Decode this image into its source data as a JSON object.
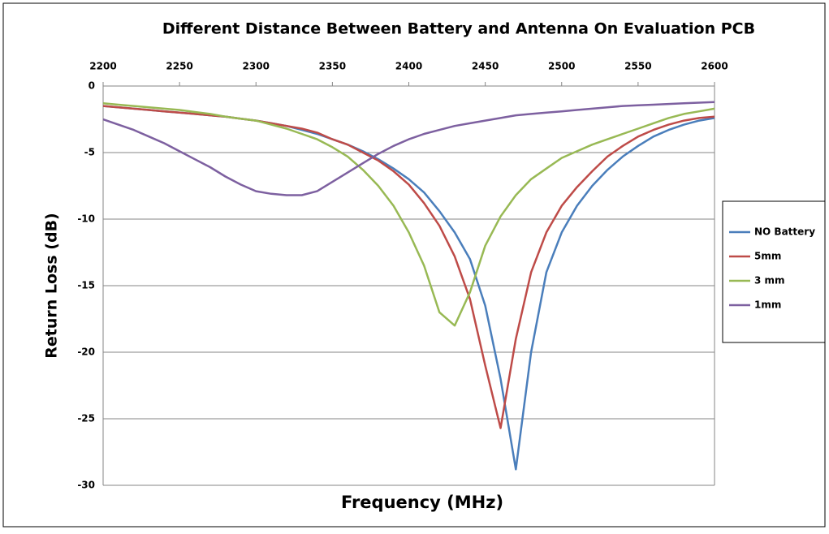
{
  "chart_data": {
    "type": "line",
    "title": "Different Distance Between Battery and Antenna On Evaluation PCB",
    "x_label": "Frequency (MHz)",
    "y_label": "Return Loss (dB)",
    "x": [
      2200,
      2210,
      2220,
      2230,
      2240,
      2250,
      2260,
      2270,
      2280,
      2290,
      2300,
      2310,
      2320,
      2330,
      2340,
      2350,
      2360,
      2370,
      2380,
      2390,
      2400,
      2410,
      2420,
      2430,
      2440,
      2450,
      2460,
      2470,
      2480,
      2490,
      2500,
      2510,
      2520,
      2530,
      2540,
      2550,
      2560,
      2570,
      2580,
      2590,
      2600
    ],
    "series": [
      {
        "name": "NO Battery",
        "color": "#4a7ebb",
        "values": [
          -1.5,
          -1.6,
          -1.7,
          -1.8,
          -1.9,
          -2.0,
          -2.1,
          -2.2,
          -2.3,
          -2.45,
          -2.6,
          -2.8,
          -3.0,
          -3.3,
          -3.6,
          -4.0,
          -4.4,
          -4.9,
          -5.5,
          -6.2,
          -7.0,
          -8.0,
          -9.4,
          -11.0,
          -13.0,
          -16.5,
          -22,
          -28.8,
          -20,
          -14,
          -11,
          -9,
          -7.5,
          -6.3,
          -5.3,
          -4.5,
          -3.8,
          -3.3,
          -2.9,
          -2.6,
          -2.4
        ]
      },
      {
        "name": "5mm",
        "color": "#be4b48",
        "values": [
          -1.5,
          -1.6,
          -1.7,
          -1.8,
          -1.9,
          -2.0,
          -2.1,
          -2.2,
          -2.3,
          -2.45,
          -2.6,
          -2.8,
          -3.0,
          -3.2,
          -3.5,
          -4.0,
          -4.4,
          -5.0,
          -5.6,
          -6.4,
          -7.4,
          -8.8,
          -10.5,
          -12.8,
          -16,
          -21,
          -25.7,
          -19,
          -14,
          -11,
          -9,
          -7.6,
          -6.4,
          -5.3,
          -4.5,
          -3.8,
          -3.3,
          -2.9,
          -2.6,
          -2.4,
          -2.3
        ]
      },
      {
        "name": "3 mm",
        "color": "#98b954",
        "values": [
          -1.3,
          -1.4,
          -1.5,
          -1.6,
          -1.7,
          -1.8,
          -1.95,
          -2.1,
          -2.3,
          -2.45,
          -2.6,
          -2.9,
          -3.2,
          -3.6,
          -4.0,
          -4.6,
          -5.3,
          -6.3,
          -7.5,
          -9.0,
          -11,
          -13.5,
          -17,
          -18,
          -15.5,
          -12,
          -9.8,
          -8.2,
          -7,
          -6.2,
          -5.4,
          -4.9,
          -4.4,
          -4.0,
          -3.6,
          -3.2,
          -2.8,
          -2.4,
          -2.1,
          -1.9,
          -1.7
        ]
      },
      {
        "name": "1mm",
        "color": "#7d60a0",
        "values": [
          -2.5,
          -2.9,
          -3.3,
          -3.8,
          -4.3,
          -4.9,
          -5.5,
          -6.1,
          -6.8,
          -7.4,
          -7.9,
          -8.1,
          -8.2,
          -8.2,
          -7.9,
          -7.2,
          -6.5,
          -5.8,
          -5.1,
          -4.5,
          -4.0,
          -3.6,
          -3.3,
          -3.0,
          -2.8,
          -2.6,
          -2.4,
          -2.2,
          -2.1,
          -2.0,
          -1.9,
          -1.8,
          -1.7,
          -1.6,
          -1.5,
          -1.45,
          -1.4,
          -1.35,
          -1.3,
          -1.25,
          -1.2
        ]
      }
    ],
    "xlim": [
      2200,
      2600
    ],
    "xticks": [
      2200,
      2250,
      2300,
      2350,
      2400,
      2450,
      2500,
      2550,
      2600
    ],
    "ylim": [
      -30,
      0
    ],
    "yticks": [
      0,
      -5,
      -10,
      -15,
      -20,
      -25,
      -30
    ],
    "grid": true,
    "legend": "right",
    "x_axis_position": "top"
  }
}
